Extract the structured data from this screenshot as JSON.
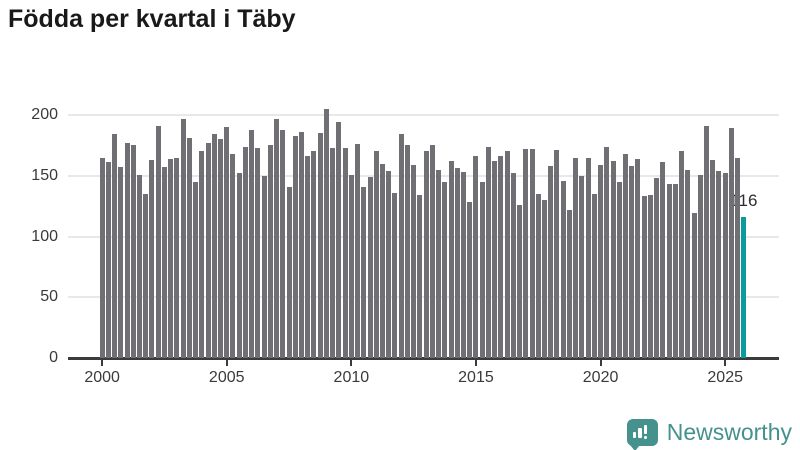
{
  "header": {
    "title": "Födda per kvartal i Täby"
  },
  "chart_data": {
    "type": "bar",
    "title": "Födda per kvartal i Täby",
    "grid": "horizontal",
    "legend": "none",
    "ylim": [
      0,
      200
    ],
    "y_tick_labels": [
      "0",
      "50",
      "100",
      "150",
      "200"
    ],
    "y_tick_values": [
      0,
      50,
      100,
      150,
      200
    ],
    "x_tick_labels": [
      "2000",
      "2005",
      "2010",
      "2015",
      "2020",
      "2025"
    ],
    "x_tick_category_indexes": [
      0,
      20,
      40,
      60,
      80,
      100
    ],
    "categories": [
      "2000Q1",
      "2000Q2",
      "2000Q3",
      "2000Q4",
      "2001Q1",
      "2001Q2",
      "2001Q3",
      "2001Q4",
      "2002Q1",
      "2002Q2",
      "2002Q3",
      "2002Q4",
      "2003Q1",
      "2003Q2",
      "2003Q3",
      "2003Q4",
      "2004Q1",
      "2004Q2",
      "2004Q3",
      "2004Q4",
      "2005Q1",
      "2005Q2",
      "2005Q3",
      "2005Q4",
      "2006Q1",
      "2006Q2",
      "2006Q3",
      "2006Q4",
      "2007Q1",
      "2007Q2",
      "2007Q3",
      "2007Q4",
      "2008Q1",
      "2008Q2",
      "2008Q3",
      "2008Q4",
      "2009Q1",
      "2009Q2",
      "2009Q3",
      "2009Q4",
      "2010Q1",
      "2010Q2",
      "2010Q3",
      "2010Q4",
      "2011Q1",
      "2011Q2",
      "2011Q3",
      "2011Q4",
      "2012Q1",
      "2012Q2",
      "2012Q3",
      "2012Q4",
      "2013Q1",
      "2013Q2",
      "2013Q3",
      "2013Q4",
      "2014Q1",
      "2014Q2",
      "2014Q3",
      "2014Q4",
      "2015Q1",
      "2015Q2",
      "2015Q3",
      "2015Q4",
      "2016Q1",
      "2016Q2",
      "2016Q3",
      "2016Q4",
      "2017Q1",
      "2017Q2",
      "2017Q3",
      "2017Q4",
      "2018Q1",
      "2018Q2",
      "2018Q3",
      "2018Q4",
      "2019Q1",
      "2019Q2",
      "2019Q3",
      "2019Q4",
      "2020Q1",
      "2020Q2",
      "2020Q3",
      "2020Q4",
      "2021Q1",
      "2021Q2",
      "2021Q3",
      "2021Q4",
      "2022Q1",
      "2022Q2",
      "2022Q3",
      "2022Q4",
      "2023Q1",
      "2023Q2",
      "2023Q3",
      "2023Q4",
      "2024Q1",
      "2024Q2",
      "2024Q3",
      "2024Q4",
      "2025Q1",
      "2025Q2",
      "2025Q3",
      "2025Q4"
    ],
    "values": [
      165,
      161,
      184,
      157,
      177,
      175,
      151,
      135,
      163,
      191,
      157,
      164,
      165,
      197,
      181,
      145,
      170,
      177,
      184,
      180,
      190,
      168,
      152,
      174,
      188,
      173,
      150,
      175,
      197,
      188,
      141,
      183,
      186,
      166,
      170,
      185,
      205,
      173,
      194,
      173,
      151,
      176,
      141,
      149,
      170,
      160,
      154,
      136,
      184,
      175,
      159,
      134,
      170,
      175,
      155,
      145,
      162,
      156,
      153,
      128,
      166,
      145,
      174,
      162,
      166,
      170,
      152,
      126,
      172,
      172,
      135,
      130,
      158,
      171,
      146,
      122,
      165,
      150,
      165,
      135,
      159,
      174,
      162,
      145,
      168,
      158,
      164,
      133,
      134,
      148,
      161,
      143,
      143,
      170,
      155,
      119,
      151,
      191,
      163,
      154,
      152,
      189,
      165,
      116
    ],
    "highlight": {
      "index": 103,
      "category": "2025Q4",
      "value": 116,
      "label": "116"
    },
    "colors": {
      "bar": "#6f6f74",
      "highlight_bar": "#0d9a9c",
      "gridline": "#e8e8e8",
      "axis": "#3b3b3b",
      "tick_text": "#3a3a3a",
      "title_text": "#191919"
    }
  },
  "footer": {
    "brand": "Newsworthy",
    "brand_color": "#45918e",
    "logo_icon": "bar-chart-speech-bubble-icon"
  }
}
